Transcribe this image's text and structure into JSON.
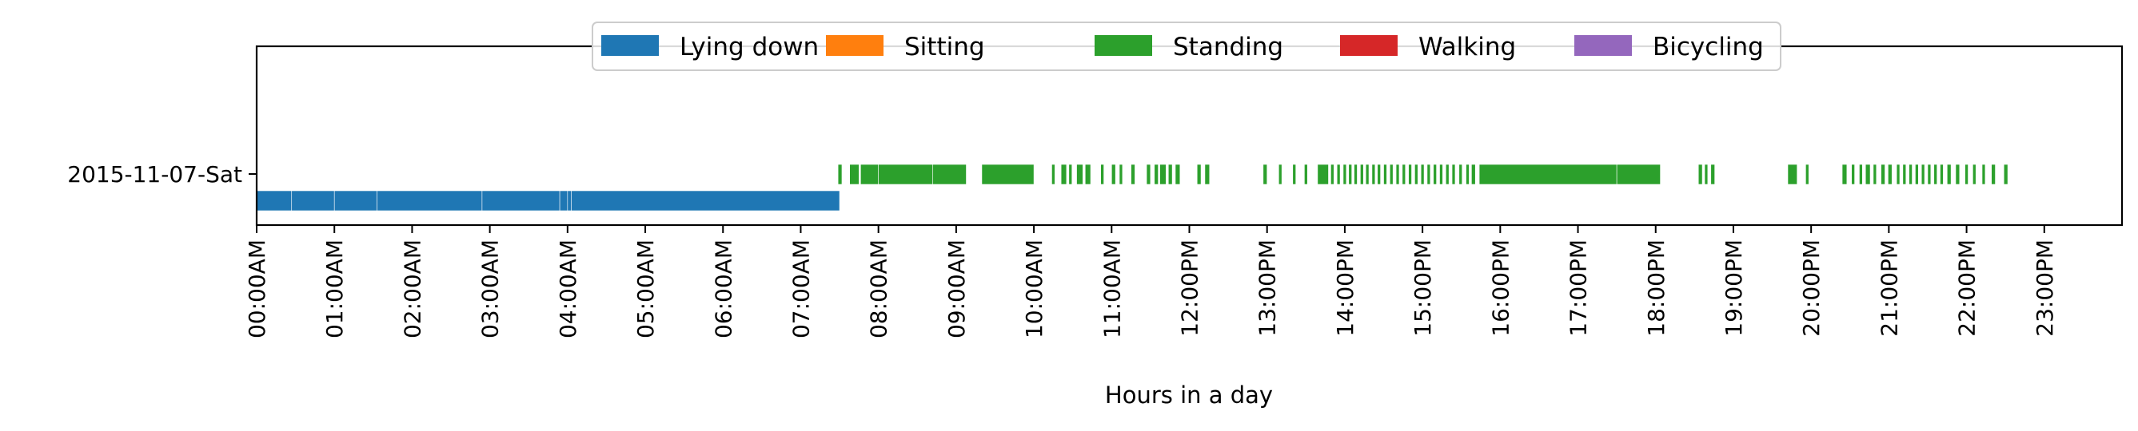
{
  "chart_data": {
    "type": "broken_barh",
    "title": "",
    "xlabel": "Hours in a day",
    "ylabel": "",
    "xlim": [
      0,
      24
    ],
    "grid": false,
    "legend_placement": "top-center",
    "categories": [
      "2015-11-07-Sat"
    ],
    "x_tick_labels": [
      "00:00AM",
      "01:00AM",
      "02:00AM",
      "03:00AM",
      "04:00AM",
      "05:00AM",
      "06:00AM",
      "07:00AM",
      "08:00AM",
      "09:00AM",
      "10:00AM",
      "11:00AM",
      "12:00PM",
      "13:00PM",
      "14:00PM",
      "15:00PM",
      "16:00PM",
      "17:00PM",
      "18:00PM",
      "19:00PM",
      "20:00PM",
      "21:00PM",
      "22:00PM",
      "23:00PM"
    ],
    "series": [
      {
        "name": "Lying down",
        "color": "#1f77b4",
        "segments": [
          [
            0.0,
            0.45
          ],
          [
            0.45,
            1.0
          ],
          [
            1.0,
            1.55
          ],
          [
            1.55,
            2.9
          ],
          [
            2.9,
            3.9
          ],
          [
            3.9,
            4.0
          ],
          [
            4.0,
            4.05
          ],
          [
            4.05,
            7.5
          ]
        ]
      },
      {
        "name": "Sitting",
        "color": "#ff7f0e",
        "segments": []
      },
      {
        "name": "Standing",
        "color": "#2ca02c",
        "segments": [
          [
            7.48,
            7.53
          ],
          [
            7.63,
            7.75
          ],
          [
            7.77,
            8.0
          ],
          [
            8.0,
            8.7
          ],
          [
            8.7,
            9.13
          ],
          [
            9.33,
            10.0
          ],
          [
            10.23,
            10.27
          ],
          [
            10.35,
            10.42
          ],
          [
            10.45,
            10.49
          ],
          [
            10.55,
            10.63
          ],
          [
            10.66,
            10.73
          ],
          [
            10.86,
            10.9
          ],
          [
            11.0,
            11.05
          ],
          [
            11.1,
            11.14
          ],
          [
            11.25,
            11.3
          ],
          [
            11.45,
            11.5
          ],
          [
            11.55,
            11.6
          ],
          [
            11.62,
            11.7
          ],
          [
            11.73,
            11.78
          ],
          [
            11.82,
            11.88
          ],
          [
            12.1,
            12.15
          ],
          [
            12.2,
            12.26
          ],
          [
            12.95,
            13.0
          ],
          [
            13.15,
            13.19
          ],
          [
            13.33,
            13.37
          ],
          [
            13.48,
            13.52
          ],
          [
            13.65,
            13.79
          ],
          [
            13.82,
            13.86
          ],
          [
            13.9,
            13.94
          ],
          [
            13.98,
            14.02
          ],
          [
            14.05,
            14.09
          ],
          [
            14.12,
            14.16
          ],
          [
            14.2,
            14.24
          ],
          [
            14.27,
            14.31
          ],
          [
            14.35,
            14.39
          ],
          [
            14.42,
            14.46
          ],
          [
            14.5,
            14.54
          ],
          [
            14.58,
            14.62
          ],
          [
            14.66,
            14.7
          ],
          [
            14.74,
            14.78
          ],
          [
            14.82,
            14.86
          ],
          [
            14.9,
            14.94
          ],
          [
            14.98,
            15.02
          ],
          [
            15.06,
            15.1
          ],
          [
            15.14,
            15.18
          ],
          [
            15.22,
            15.26
          ],
          [
            15.3,
            15.34
          ],
          [
            15.38,
            15.42
          ],
          [
            15.47,
            15.51
          ],
          [
            15.56,
            15.6
          ],
          [
            15.63,
            15.68
          ],
          [
            15.73,
            17.5
          ],
          [
            17.5,
            18.06
          ],
          [
            18.55,
            18.6
          ],
          [
            18.63,
            18.67
          ],
          [
            18.71,
            18.76
          ],
          [
            19.7,
            19.82
          ],
          [
            19.93,
            19.97
          ],
          [
            20.4,
            20.46
          ],
          [
            20.52,
            20.56
          ],
          [
            20.62,
            20.66
          ],
          [
            20.7,
            20.76
          ],
          [
            20.8,
            20.84
          ],
          [
            20.9,
            20.95
          ],
          [
            20.99,
            21.04
          ],
          [
            21.1,
            21.14
          ],
          [
            21.18,
            21.22
          ],
          [
            21.26,
            21.3
          ],
          [
            21.34,
            21.38
          ],
          [
            21.42,
            21.46
          ],
          [
            21.5,
            21.54
          ],
          [
            21.58,
            21.62
          ],
          [
            21.66,
            21.7
          ],
          [
            21.75,
            21.8
          ],
          [
            21.86,
            21.91
          ],
          [
            21.98,
            22.02
          ],
          [
            22.08,
            22.12
          ],
          [
            22.2,
            22.24
          ],
          [
            22.32,
            22.37
          ],
          [
            22.48,
            22.53
          ]
        ]
      },
      {
        "name": "Walking",
        "color": "#d62728",
        "segments": []
      },
      {
        "name": "Bicycling",
        "color": "#9467bd",
        "segments": []
      }
    ]
  }
}
